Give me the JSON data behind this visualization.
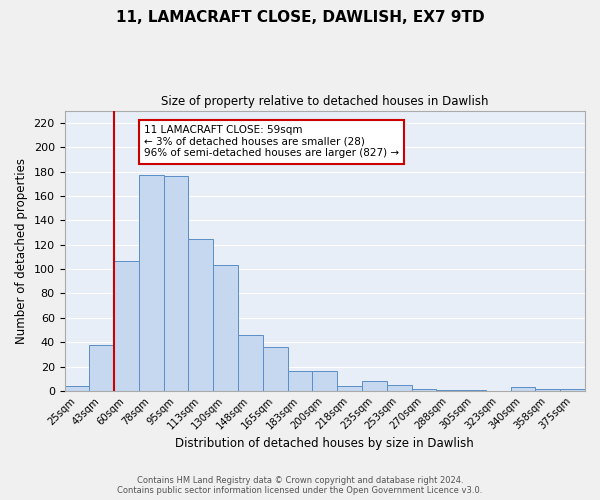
{
  "title": "11, LAMACRAFT CLOSE, DAWLISH, EX7 9TD",
  "subtitle": "Size of property relative to detached houses in Dawlish",
  "xlabel": "Distribution of detached houses by size in Dawlish",
  "ylabel": "Number of detached properties",
  "categories": [
    "25sqm",
    "43sqm",
    "60sqm",
    "78sqm",
    "95sqm",
    "113sqm",
    "130sqm",
    "148sqm",
    "165sqm",
    "183sqm",
    "200sqm",
    "218sqm",
    "235sqm",
    "253sqm",
    "270sqm",
    "288sqm",
    "305sqm",
    "323sqm",
    "340sqm",
    "358sqm",
    "375sqm"
  ],
  "values": [
    4,
    38,
    107,
    177,
    176,
    125,
    103,
    46,
    36,
    16,
    16,
    4,
    8,
    5,
    2,
    1,
    1,
    0,
    3,
    2,
    2
  ],
  "bar_color": "#c5d8f0",
  "bar_edge_color": "#5b8ec7",
  "vline_color": "#cc0000",
  "annotation_text": "11 LAMACRAFT CLOSE: 59sqm\n← 3% of detached houses are smaller (28)\n96% of semi-detached houses are larger (827) →",
  "annotation_box_color": "#ffffff",
  "annotation_box_edge_color": "#cc0000",
  "ylim": [
    0,
    230
  ],
  "yticks": [
    0,
    20,
    40,
    60,
    80,
    100,
    120,
    140,
    160,
    180,
    200,
    220
  ],
  "grid_color": "#ffffff",
  "bg_color": "#e8eef8",
  "fig_bg_color": "#f0f0f0",
  "footer": "Contains HM Land Registry data © Crown copyright and database right 2024.\nContains public sector information licensed under the Open Government Licence v3.0."
}
